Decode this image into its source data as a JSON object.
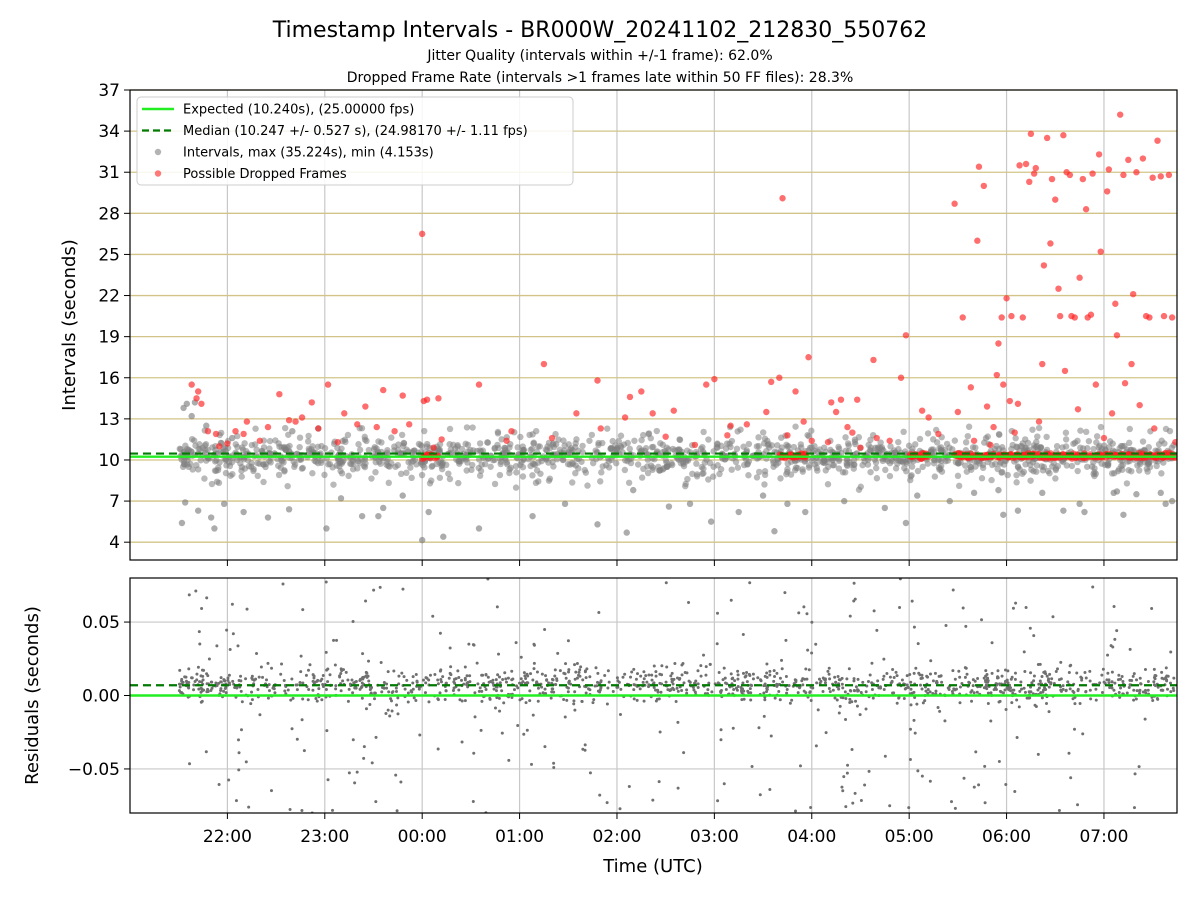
{
  "title": "Timestamp Intervals - BR000W_20241102_212830_550762",
  "subtitle_1": "Jitter Quality (intervals within +/-1 frame): 62.0%",
  "subtitle_2": "Dropped Frame Rate (intervals >1 frames late within 50 FF files): 28.3%",
  "colors": {
    "expected": "#22ee22",
    "median": "#007a00",
    "intervals": "#808080",
    "dropped": "#ff2020",
    "hgrid_top": "#d2c488",
    "grid": "#c8c8c8",
    "residuals": "#707070"
  },
  "chart_data": [
    {
      "type": "scatter",
      "panel": "intervals",
      "ylabel": "Intervals (seconds)",
      "xlabel": "",
      "ylim": [
        2.7,
        37
      ],
      "yticks": [
        4,
        7,
        10,
        13,
        16,
        19,
        22,
        25,
        28,
        31,
        34,
        37
      ],
      "ytick_labels": [
        "4",
        "7",
        "10",
        "13",
        "16",
        "19",
        "22",
        "25",
        "28",
        "31",
        "34",
        "37"
      ],
      "xlim_hours": [
        -3.0,
        7.75
      ],
      "xlim_time": [
        "21:00",
        "07:45"
      ],
      "xtick_hours": [
        -2,
        -1,
        0,
        1,
        2,
        3,
        4,
        5,
        6,
        7
      ],
      "grid": "horizontal (tan) and vertical (gray)",
      "legend_position": "top-left",
      "legend": [
        {
          "key": "expected",
          "marker": "line",
          "label": "Expected (10.240s), (25.00000 fps)"
        },
        {
          "key": "median",
          "marker": "dashed",
          "label": "Median (10.247 +/- 0.527 s), (24.98170 +/- 1.11 fps)"
        },
        {
          "key": "intervals",
          "marker": "dot",
          "label": "Intervals, max (35.224s), min (4.153s)"
        },
        {
          "key": "dropped",
          "marker": "dot",
          "label": "Possible Dropped Frames"
        }
      ],
      "expected_value": 10.24,
      "median_value": 10.247,
      "time_range": [
        "21:30",
        "07:45"
      ],
      "intervals_cluster": {
        "center": 10.24,
        "spread": 0.6,
        "count": 1500
      },
      "intervals_outliers": [
        {
          "time": "21:33",
          "value": 13.8
        },
        {
          "time": "21:35",
          "value": 14.1
        },
        {
          "time": "21:38",
          "value": 13.2
        },
        {
          "time": "21:40",
          "value": 14.2
        },
        {
          "time": "21:47",
          "value": 12.5
        },
        {
          "time": "21:34",
          "value": 6.9
        },
        {
          "time": "21:32",
          "value": 5.4
        },
        {
          "time": "21:42",
          "value": 6.3
        },
        {
          "time": "21:50",
          "value": 5.8
        },
        {
          "time": "21:52",
          "value": 5.0
        },
        {
          "time": "21:58",
          "value": 6.8
        },
        {
          "time": "22:03",
          "value": 11.6
        },
        {
          "time": "22:10",
          "value": 6.2
        },
        {
          "time": "22:25",
          "value": 5.8
        },
        {
          "time": "22:38",
          "value": 6.4
        },
        {
          "time": "22:40",
          "value": 12.1
        },
        {
          "time": "22:56",
          "value": 12.3
        },
        {
          "time": "23:01",
          "value": 5.0
        },
        {
          "time": "23:10",
          "value": 7.2
        },
        {
          "time": "23:23",
          "value": 5.9
        },
        {
          "time": "23:33",
          "value": 5.9
        },
        {
          "time": "23:36",
          "value": 6.5
        },
        {
          "time": "23:48",
          "value": 7.4
        },
        {
          "time": "00:00",
          "value": 4.15
        },
        {
          "time": "00:04",
          "value": 6.2
        },
        {
          "time": "00:13",
          "value": 4.4
        },
        {
          "time": "00:35",
          "value": 5.0
        },
        {
          "time": "01:08",
          "value": 5.9
        },
        {
          "time": "01:28",
          "value": 6.8
        },
        {
          "time": "01:48",
          "value": 5.3
        },
        {
          "time": "02:06",
          "value": 4.7
        },
        {
          "time": "02:10",
          "value": 7.8
        },
        {
          "time": "02:32",
          "value": 6.6
        },
        {
          "time": "02:45",
          "value": 6.8
        },
        {
          "time": "02:58",
          "value": 5.5
        },
        {
          "time": "03:15",
          "value": 6.2
        },
        {
          "time": "03:30",
          "value": 7.4
        },
        {
          "time": "03:37",
          "value": 4.8
        },
        {
          "time": "03:45",
          "value": 6.8
        },
        {
          "time": "03:56",
          "value": 6.2
        },
        {
          "time": "04:20",
          "value": 7.0
        },
        {
          "time": "04:45",
          "value": 6.5
        },
        {
          "time": "04:58",
          "value": 5.4
        },
        {
          "time": "05:05",
          "value": 7.4
        },
        {
          "time": "05:25",
          "value": 7.0
        },
        {
          "time": "05:40",
          "value": 7.6
        },
        {
          "time": "05:55",
          "value": 7.8
        },
        {
          "time": "05:58",
          "value": 6.0
        },
        {
          "time": "06:07",
          "value": 6.3
        },
        {
          "time": "06:22",
          "value": 7.6
        },
        {
          "time": "06:35",
          "value": 6.3
        },
        {
          "time": "06:45",
          "value": 6.8
        },
        {
          "time": "06:48",
          "value": 6.2
        },
        {
          "time": "07:06",
          "value": 7.6
        },
        {
          "time": "07:08",
          "value": 7.7
        },
        {
          "time": "07:12",
          "value": 6.0
        },
        {
          "time": "07:20",
          "value": 7.5
        },
        {
          "time": "07:35",
          "value": 7.6
        },
        {
          "time": "07:38",
          "value": 6.8
        },
        {
          "time": "07:42",
          "value": 7.0
        }
      ],
      "dropped_frames": [
        {
          "time": "21:38",
          "value": 15.5
        },
        {
          "time": "21:41",
          "value": 14.5
        },
        {
          "time": "21:42",
          "value": 15.0
        },
        {
          "time": "21:44",
          "value": 14.1
        },
        {
          "time": "21:48",
          "value": 12.1
        },
        {
          "time": "21:53",
          "value": 11.9
        },
        {
          "time": "21:55",
          "value": 11.0
        },
        {
          "time": "22:00",
          "value": 11.2
        },
        {
          "time": "22:05",
          "value": 12.1
        },
        {
          "time": "22:10",
          "value": 11.9
        },
        {
          "time": "22:12",
          "value": 12.8
        },
        {
          "time": "22:20",
          "value": 11.4
        },
        {
          "time": "22:25",
          "value": 12.4
        },
        {
          "time": "22:32",
          "value": 14.8
        },
        {
          "time": "22:38",
          "value": 12.9
        },
        {
          "time": "22:42",
          "value": 12.8
        },
        {
          "time": "22:46",
          "value": 13.1
        },
        {
          "time": "22:52",
          "value": 14.2
        },
        {
          "time": "22:56",
          "value": 12.3
        },
        {
          "time": "23:02",
          "value": 15.5
        },
        {
          "time": "23:08",
          "value": 11.3
        },
        {
          "time": "23:12",
          "value": 13.4
        },
        {
          "time": "23:20",
          "value": 12.6
        },
        {
          "time": "23:25",
          "value": 13.9
        },
        {
          "time": "23:32",
          "value": 12.4
        },
        {
          "time": "23:36",
          "value": 15.1
        },
        {
          "time": "23:43",
          "value": 12.1
        },
        {
          "time": "23:48",
          "value": 14.7
        },
        {
          "time": "23:52",
          "value": 12.6
        },
        {
          "time": "00:00",
          "value": 26.5
        },
        {
          "time": "00:01",
          "value": 14.3
        },
        {
          "time": "00:03",
          "value": 14.4
        },
        {
          "time": "00:07",
          "value": 10.9
        },
        {
          "time": "00:10",
          "value": 14.5
        },
        {
          "time": "00:12",
          "value": 11.5
        },
        {
          "time": "00:35",
          "value": 15.5
        },
        {
          "time": "00:52",
          "value": 11.4
        },
        {
          "time": "00:55",
          "value": 12.1
        },
        {
          "time": "01:15",
          "value": 17.0
        },
        {
          "time": "01:20",
          "value": 11.6
        },
        {
          "time": "01:35",
          "value": 13.4
        },
        {
          "time": "01:48",
          "value": 15.8
        },
        {
          "time": "01:50",
          "value": 12.3
        },
        {
          "time": "02:05",
          "value": 13.1
        },
        {
          "time": "02:08",
          "value": 14.6
        },
        {
          "time": "02:15",
          "value": 15.0
        },
        {
          "time": "02:22",
          "value": 13.4
        },
        {
          "time": "02:30",
          "value": 11.7
        },
        {
          "time": "02:35",
          "value": 13.6
        },
        {
          "time": "02:48",
          "value": 11.1
        },
        {
          "time": "02:55",
          "value": 15.5
        },
        {
          "time": "03:00",
          "value": 15.9
        },
        {
          "time": "03:08",
          "value": 11.8
        },
        {
          "time": "03:10",
          "value": 12.5
        },
        {
          "time": "03:20",
          "value": 12.6
        },
        {
          "time": "03:32",
          "value": 13.5
        },
        {
          "time": "03:35",
          "value": 15.7
        },
        {
          "time": "03:40",
          "value": 16.0
        },
        {
          "time": "03:42",
          "value": 29.1
        },
        {
          "time": "03:45",
          "value": 11.8
        },
        {
          "time": "03:50",
          "value": 15.0
        },
        {
          "time": "03:55",
          "value": 12.8
        },
        {
          "time": "03:58",
          "value": 17.5
        },
        {
          "time": "04:00",
          "value": 11.4
        },
        {
          "time": "04:10",
          "value": 11.3
        },
        {
          "time": "04:12",
          "value": 14.2
        },
        {
          "time": "04:15",
          "value": 13.5
        },
        {
          "time": "04:18",
          "value": 14.4
        },
        {
          "time": "04:22",
          "value": 12.4
        },
        {
          "time": "04:25",
          "value": 12.0
        },
        {
          "time": "04:28",
          "value": 14.4
        },
        {
          "time": "04:30",
          "value": 10.9
        },
        {
          "time": "04:38",
          "value": 17.3
        },
        {
          "time": "04:40",
          "value": 11.6
        },
        {
          "time": "04:48",
          "value": 11.4
        },
        {
          "time": "04:55",
          "value": 16.0
        },
        {
          "time": "04:58",
          "value": 19.1
        },
        {
          "time": "05:08",
          "value": 13.6
        },
        {
          "time": "05:12",
          "value": 13.1
        },
        {
          "time": "05:18",
          "value": 11.9
        },
        {
          "time": "05:28",
          "value": 28.7
        },
        {
          "time": "05:30",
          "value": 13.5
        },
        {
          "time": "05:33",
          "value": 20.4
        },
        {
          "time": "05:38",
          "value": 15.3
        },
        {
          "time": "05:40",
          "value": 11.4
        },
        {
          "time": "05:42",
          "value": 26.0
        },
        {
          "time": "05:43",
          "value": 31.4
        },
        {
          "time": "05:46",
          "value": 30.0
        },
        {
          "time": "05:48",
          "value": 13.9
        },
        {
          "time": "05:50",
          "value": 11.1
        },
        {
          "time": "05:52",
          "value": 12.4
        },
        {
          "time": "05:54",
          "value": 16.2
        },
        {
          "time": "05:55",
          "value": 18.5
        },
        {
          "time": "05:57",
          "value": 20.4
        },
        {
          "time": "05:58",
          "value": 15.5
        },
        {
          "time": "06:00",
          "value": 21.8
        },
        {
          "time": "06:02",
          "value": 14.3
        },
        {
          "time": "06:03",
          "value": 20.5
        },
        {
          "time": "06:05",
          "value": 12.0
        },
        {
          "time": "06:07",
          "value": 14.1
        },
        {
          "time": "06:08",
          "value": 31.5
        },
        {
          "time": "06:10",
          "value": 20.4
        },
        {
          "time": "06:12",
          "value": 31.6
        },
        {
          "time": "06:14",
          "value": 30.3
        },
        {
          "time": "06:15",
          "value": 33.8
        },
        {
          "time": "06:17",
          "value": 30.9
        },
        {
          "time": "06:18",
          "value": 31.3
        },
        {
          "time": "06:20",
          "value": 12.8
        },
        {
          "time": "06:22",
          "value": 17.0
        },
        {
          "time": "06:23",
          "value": 24.2
        },
        {
          "time": "06:25",
          "value": 33.5
        },
        {
          "time": "06:27",
          "value": 25.8
        },
        {
          "time": "06:28",
          "value": 30.5
        },
        {
          "time": "06:30",
          "value": 29.0
        },
        {
          "time": "06:32",
          "value": 22.5
        },
        {
          "time": "06:33",
          "value": 20.5
        },
        {
          "time": "06:35",
          "value": 33.7
        },
        {
          "time": "06:36",
          "value": 16.5
        },
        {
          "time": "06:37",
          "value": 31.0
        },
        {
          "time": "06:39",
          "value": 30.8
        },
        {
          "time": "06:40",
          "value": 20.5
        },
        {
          "time": "06:42",
          "value": 20.4
        },
        {
          "time": "06:44",
          "value": 13.7
        },
        {
          "time": "06:45",
          "value": 23.3
        },
        {
          "time": "06:47",
          "value": 30.5
        },
        {
          "time": "06:49",
          "value": 28.3
        },
        {
          "time": "06:50",
          "value": 20.4
        },
        {
          "time": "06:52",
          "value": 20.6
        },
        {
          "time": "06:53",
          "value": 30.9
        },
        {
          "time": "06:55",
          "value": 15.5
        },
        {
          "time": "06:57",
          "value": 32.3
        },
        {
          "time": "06:58",
          "value": 25.2
        },
        {
          "time": "07:00",
          "value": 11.6
        },
        {
          "time": "07:02",
          "value": 29.6
        },
        {
          "time": "07:03",
          "value": 31.2
        },
        {
          "time": "07:05",
          "value": 13.4
        },
        {
          "time": "07:07",
          "value": 21.4
        },
        {
          "time": "07:08",
          "value": 19.1
        },
        {
          "time": "07:10",
          "value": 35.2
        },
        {
          "time": "07:12",
          "value": 30.8
        },
        {
          "time": "07:13",
          "value": 15.6
        },
        {
          "time": "07:15",
          "value": 31.9
        },
        {
          "time": "07:17",
          "value": 17.0
        },
        {
          "time": "07:18",
          "value": 22.1
        },
        {
          "time": "07:20",
          "value": 31.0
        },
        {
          "time": "07:22",
          "value": 14.0
        },
        {
          "time": "07:24",
          "value": 32.0
        },
        {
          "time": "07:26",
          "value": 20.5
        },
        {
          "time": "07:28",
          "value": 20.4
        },
        {
          "time": "07:30",
          "value": 30.6
        },
        {
          "time": "07:31",
          "value": 12.3
        },
        {
          "time": "07:33",
          "value": 33.3
        },
        {
          "time": "07:35",
          "value": 30.7
        },
        {
          "time": "07:37",
          "value": 20.5
        },
        {
          "time": "07:40",
          "value": 30.8
        },
        {
          "time": "07:42",
          "value": 20.4
        },
        {
          "time": "07:44",
          "value": 11.3
        }
      ],
      "dropped_clusters": [
        {
          "start": "00:00",
          "end": "00:10",
          "value": 10.3
        },
        {
          "start": "03:40",
          "end": "03:57",
          "value": 10.3
        },
        {
          "start": "05:00",
          "end": "05:12",
          "value": 10.3
        },
        {
          "start": "05:28",
          "end": "07:45",
          "value": 10.3
        }
      ]
    },
    {
      "type": "scatter",
      "panel": "residuals",
      "ylabel": "Residuals (seconds)",
      "xlabel": "Time (UTC)",
      "ylim": [
        -0.08,
        0.08
      ],
      "yticks": [
        -0.05,
        0.0,
        0.05
      ],
      "ytick_labels": [
        "−0.05",
        "0.00",
        "0.05"
      ],
      "x_tick_labels": [
        "22:00",
        "23:00",
        "00:00",
        "01:00",
        "02:00",
        "03:00",
        "04:00",
        "05:00",
        "06:00",
        "07:00"
      ],
      "grid": "both (gray)",
      "expected_residual": 0.0,
      "median_residual": 0.007,
      "residual_cluster": {
        "center": 0.007,
        "spread": 0.006,
        "count": 1200
      },
      "residual_outliers_count": 300
    }
  ]
}
